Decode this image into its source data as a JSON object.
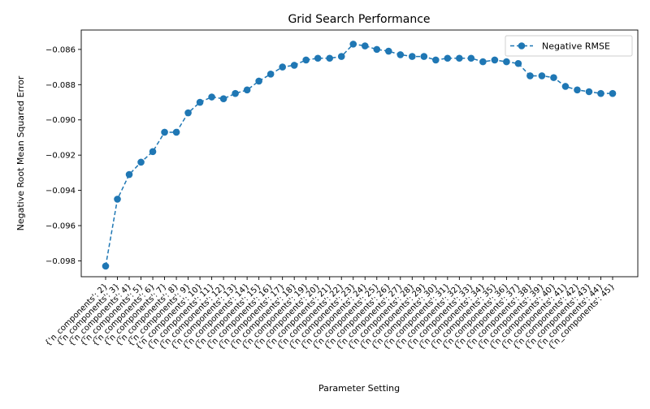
{
  "chart_data": {
    "type": "line",
    "title": "Grid Search Performance",
    "xlabel": "Parameter Setting",
    "ylabel": "Negative Root Mean Squared Error",
    "ylim": [
      -0.0989,
      -0.0849
    ],
    "yticks": [
      "−0.098",
      "−0.096",
      "−0.094",
      "−0.092",
      "−0.090",
      "−0.088",
      "−0.086"
    ],
    "ytick_values": [
      -0.098,
      -0.096,
      -0.094,
      -0.092,
      -0.09,
      -0.088,
      -0.086
    ],
    "grid": false,
    "legend": {
      "placement": "top-right"
    },
    "categories": [
      "{'n_components': 2}",
      "{'n_components': 3}",
      "{'n_components': 4}",
      "{'n_components': 5}",
      "{'n_components': 6}",
      "{'n_components': 7}",
      "{'n_components': 8}",
      "{'n_components': 9}",
      "{'n_components': 10}",
      "{'n_components': 11}",
      "{'n_components': 12}",
      "{'n_components': 13}",
      "{'n_components': 14}",
      "{'n_components': 15}",
      "{'n_components': 16}",
      "{'n_components': 17}",
      "{'n_components': 18}",
      "{'n_components': 19}",
      "{'n_components': 20}",
      "{'n_components': 21}",
      "{'n_components': 22}",
      "{'n_components': 23}",
      "{'n_components': 24}",
      "{'n_components': 25}",
      "{'n_components': 26}",
      "{'n_components': 27}",
      "{'n_components': 28}",
      "{'n_components': 29}",
      "{'n_components': 30}",
      "{'n_components': 31}",
      "{'n_components': 32}",
      "{'n_components': 33}",
      "{'n_components': 34}",
      "{'n_components': 35}",
      "{'n_components': 36}",
      "{'n_components': 37}",
      "{'n_components': 38}",
      "{'n_components': 39}",
      "{'n_components': 40}",
      "{'n_components': 41}",
      "{'n_components': 42}",
      "{'n_components': 43}",
      "{'n_components': 44}",
      "{'n_components': 45}"
    ],
    "series": [
      {
        "name": "Negative RMSE",
        "color": "#1f77b4",
        "values": [
          -0.0983,
          -0.0945,
          -0.0931,
          -0.0924,
          -0.0918,
          -0.0907,
          -0.0907,
          -0.0896,
          -0.089,
          -0.0887,
          -0.0888,
          -0.0885,
          -0.0883,
          -0.0878,
          -0.0874,
          -0.087,
          -0.0869,
          -0.0866,
          -0.0865,
          -0.0865,
          -0.0864,
          -0.0857,
          -0.0858,
          -0.086,
          -0.0861,
          -0.0863,
          -0.0864,
          -0.0864,
          -0.0866,
          -0.0865,
          -0.0865,
          -0.0865,
          -0.0867,
          -0.0866,
          -0.0867,
          -0.0868,
          -0.0875,
          -0.0875,
          -0.0876,
          -0.0881,
          -0.0883,
          -0.0884,
          -0.0885,
          -0.0885
        ]
      }
    ]
  }
}
